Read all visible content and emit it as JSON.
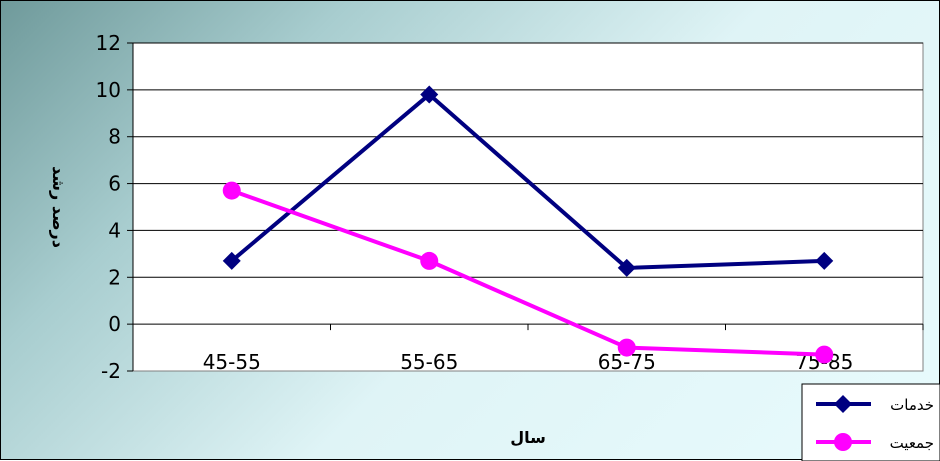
{
  "chart_data": {
    "type": "line",
    "categories": [
      "45-55",
      "55-65",
      "65-75",
      "75-85"
    ],
    "series": [
      {
        "name": "خدمات",
        "values": [
          2.7,
          9.8,
          2.4,
          2.7
        ],
        "color": "#000080",
        "marker": "diamond"
      },
      {
        "name": "جمعيت",
        "values": [
          5.7,
          2.7,
          -1.0,
          -1.3
        ],
        "color": "#ff00ff",
        "marker": "circle"
      }
    ],
    "yticks": [
      "12",
      "10",
      "8",
      "6",
      "4",
      "2",
      "0",
      "-2"
    ],
    "ylim": [
      -2,
      12
    ],
    "xlabel": "سال",
    "ylabel": "درصد رشد",
    "grid": "horizontal",
    "legend_position": "bottom-right",
    "plot_background": "#ffffff"
  }
}
